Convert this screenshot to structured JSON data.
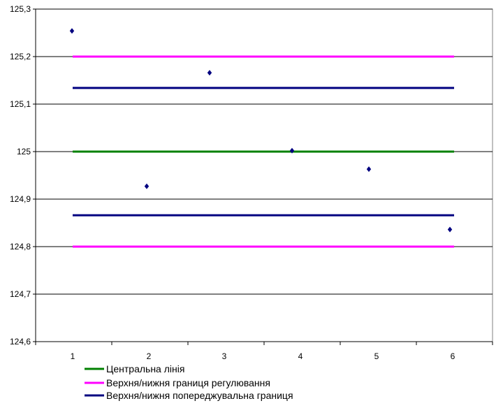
{
  "chart_data": {
    "type": "scatter",
    "title": "",
    "xlabel": "",
    "ylabel": "",
    "x_ticks": [
      "1",
      "2",
      "3",
      "4",
      "5",
      "6"
    ],
    "y_ticks": [
      "124,6",
      "124,7",
      "124,8",
      "124,9",
      "125",
      "125,1",
      "125,2",
      "125,3"
    ],
    "xlim": [
      1,
      6
    ],
    "ylim": [
      124.6,
      125.3
    ],
    "grid": "horizontal",
    "legend_position": "bottom",
    "points": {
      "color": "#000080",
      "marker": "diamond",
      "x": [
        1,
        2,
        3,
        4,
        5,
        6
      ],
      "y": [
        125.254,
        124.927,
        125.166,
        125.002,
        124.963,
        124.836
      ]
    },
    "series": [
      {
        "name": "Центральна лінія",
        "color": "#008000",
        "values": [
          125.0,
          125.0
        ]
      },
      {
        "name": "Верхня/нижня границя регулювання",
        "color": "#FF00FF",
        "values": [
          125.2,
          124.8
        ]
      },
      {
        "name": "Верхня/нижня попереджувальна границя",
        "color": "#000080",
        "values": [
          125.134,
          124.866
        ]
      }
    ]
  }
}
